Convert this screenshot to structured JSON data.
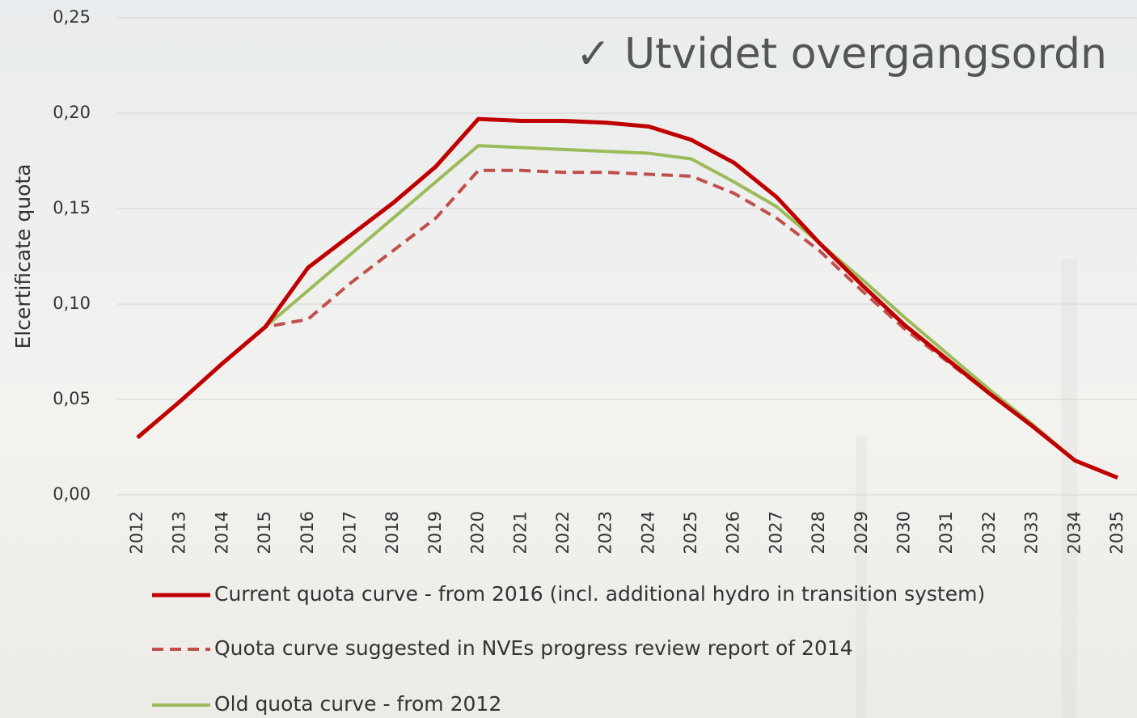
{
  "chart_data": {
    "type": "line",
    "annotation": "✓ Utvidet overgangsordn",
    "y_label": "Elcertificate quota",
    "categories": [
      "2012",
      "2013",
      "2014",
      "2015",
      "2016",
      "2017",
      "2018",
      "2019",
      "2020",
      "2021",
      "2022",
      "2023",
      "2024",
      "2025",
      "2026",
      "2027",
      "2028",
      "2029",
      "2030",
      "2031",
      "2032",
      "2033",
      "2034",
      "2035"
    ],
    "ylim": [
      0,
      0.25
    ],
    "yticks": [
      {
        "value": 0,
        "label": "0,00"
      },
      {
        "value": 0.05,
        "label": "0,05"
      },
      {
        "value": 0.1,
        "label": "0,10"
      },
      {
        "value": 0.15,
        "label": "0,15"
      },
      {
        "value": 0.2,
        "label": "0,20"
      },
      {
        "value": 0.25,
        "label": "0,25"
      }
    ],
    "grid": true,
    "legend": "bottom",
    "series": [
      {
        "name": "Current quota curve - from 2016  (incl. additional hydro in transition system)",
        "color": "#c00000",
        "dash": false,
        "values": [
          0.03,
          0.049,
          0.069,
          0.088,
          0.119,
          0.136,
          0.153,
          0.172,
          0.197,
          0.196,
          0.196,
          0.195,
          0.193,
          0.186,
          0.174,
          0.156,
          0.132,
          0.11,
          0.089,
          0.071,
          0.053,
          0.036,
          0.018,
          0.009
        ]
      },
      {
        "name": "Quota curve suggested in NVEs progress review report of 2014",
        "color": "#c0504d",
        "dash": true,
        "values": [
          0.03,
          0.049,
          0.069,
          0.088,
          0.092,
          0.111,
          0.128,
          0.145,
          0.17,
          0.17,
          0.169,
          0.169,
          0.168,
          0.167,
          0.158,
          0.145,
          0.128,
          0.107,
          0.087,
          0.07,
          0.053,
          0.036,
          0.018,
          0.009
        ]
      },
      {
        "name": "Old quota curve - from 2012",
        "color": "#9bbb59",
        "dash": false,
        "values": [
          0.03,
          0.049,
          0.069,
          0.088,
          0.107,
          0.126,
          0.145,
          0.164,
          0.183,
          0.182,
          0.181,
          0.18,
          0.179,
          0.176,
          0.164,
          0.151,
          0.132,
          0.113,
          0.093,
          0.074,
          0.055,
          0.037,
          0.018,
          0.009
        ]
      }
    ]
  }
}
